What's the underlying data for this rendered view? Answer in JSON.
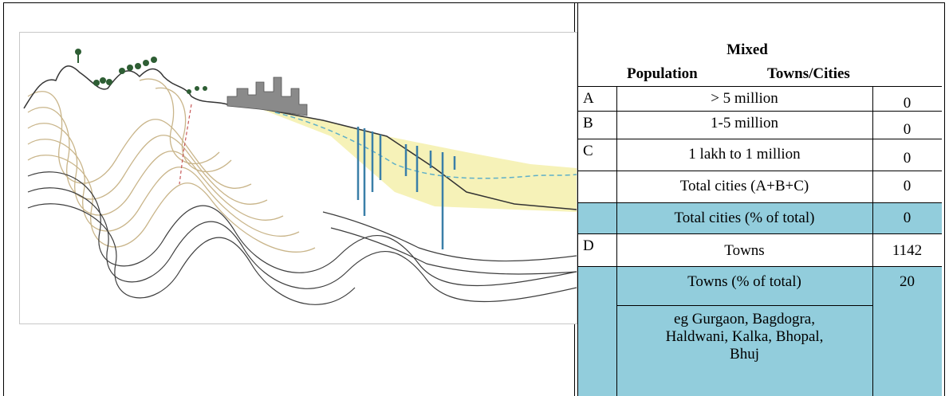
{
  "table": {
    "title": "Mixed",
    "col_population": "Population",
    "col_towns": "Towns/Cities",
    "rows": [
      {
        "code": "A",
        "label": "> 5 million",
        "value": "0"
      },
      {
        "code": "B",
        "label": "1-5 million",
        "value": "0"
      },
      {
        "code": "C",
        "label": "1 lakh to 1 million",
        "value": "0"
      },
      {
        "code": "",
        "label": "Total cities (A+B+C)",
        "value": "0"
      },
      {
        "code": "",
        "label": "Total cities (% of total)",
        "value": "0"
      },
      {
        "code": "D",
        "label": "Towns",
        "value": "1142"
      },
      {
        "code": "",
        "label": "Towns (% of total)",
        "value": "20"
      }
    ],
    "examples": [
      "eg Gurgaon, Bagdogra,",
      "Haldwani, Kalka, Bhopal,",
      "Bhuj"
    ]
  },
  "colors": {
    "highlight": "#92cddc",
    "rock_lines": "#c9b58a",
    "sediment": "#f6f2b8",
    "city": "#8a8a8a",
    "wells": "#3a7fa8",
    "trees": "#2e5e34"
  }
}
